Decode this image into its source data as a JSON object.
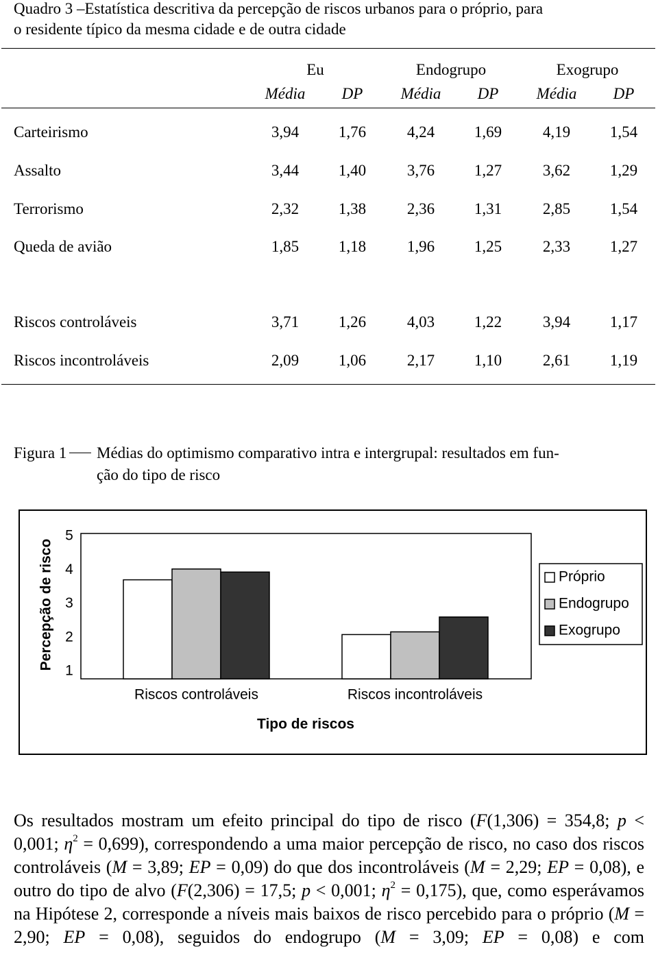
{
  "header": {
    "title": [
      "Quadro 3 –Estatística descritiva da percepção de riscos urbanos para o próprio, para",
      "o residente típico da mesma cidade e de outra cidade"
    ]
  },
  "table": {
    "groups": [
      "Eu",
      "Endogrupo",
      "Exogrupo"
    ],
    "subheaders": [
      "Média",
      "DP",
      "Média",
      "DP",
      "Média",
      "DP"
    ],
    "rows": [
      [
        "Carteirismo",
        "3,94",
        "1,76",
        "4,24",
        "1,69",
        "4,19",
        "1,54"
      ],
      [
        "Assalto",
        "3,44",
        "1,40",
        "3,76",
        "1,27",
        "3,62",
        "1,29"
      ],
      [
        "Terrorismo",
        "2,32",
        "1,38",
        "2,36",
        "1,31",
        "2,85",
        "1,54"
      ],
      [
        "Queda de avião",
        "1,85",
        "1,18",
        "1,96",
        "1,25",
        "2,33",
        "1,27"
      ],
      [
        "Riscos controláveis",
        "3,71",
        "1,26",
        "4,03",
        "1,22",
        "3,94",
        "1,17"
      ],
      [
        "Riscos incontroláveis",
        "2,09",
        "1,06",
        "2,17",
        "1,10",
        "2,61",
        "1,19"
      ]
    ]
  },
  "figure": {
    "label": "Figura 1",
    "caption": [
      "Médias do optimismo comparativo intra e intergrupal: resultados em fun-",
      "ção do tipo de risco"
    ]
  },
  "chart_data": {
    "type": "bar",
    "y_label": "Percepção de risco",
    "x_label": "Tipo de riscos",
    "categories": [
      "Riscos controláveis",
      "Riscos incontroláveis"
    ],
    "series": [
      {
        "name": "Próprio",
        "color": "#ffffff",
        "values": [
          3.71,
          2.09
        ]
      },
      {
        "name": "Endogrupo",
        "color": "#c0c0c0",
        "values": [
          4.03,
          2.17
        ]
      },
      {
        "name": "Exogrupo",
        "color": "#333333",
        "values": [
          3.94,
          2.61
        ]
      }
    ],
    "ylim": [
      0.78,
      5
    ],
    "yticks": [
      1,
      2,
      3,
      4,
      5
    ],
    "grid": false,
    "legend": "right"
  },
  "paragraph": [
    {
      "text": "Os resultados mostram um efeito principal do tipo de risco ("
    },
    {
      "text": "F",
      "style": "italic"
    },
    {
      "text": "(1,306) = 354,8; "
    },
    {
      "text": "p",
      "style": "italic"
    },
    {
      "text": " < 0,001; "
    },
    {
      "text": "η",
      "style": "italic"
    },
    {
      "text": "2",
      "style": "sup"
    },
    {
      "text": " = 0,699), correspondendo a uma maior percepção de risco, no caso dos riscos controláveis ("
    },
    {
      "text": "M",
      "style": "italic"
    },
    {
      "text": " = 3,89; "
    },
    {
      "text": "EP",
      "style": "italic"
    },
    {
      "text": " = 0,09) do que dos incontroláveis ("
    },
    {
      "text": "M",
      "style": "italic"
    },
    {
      "text": " = 2,29; "
    },
    {
      "text": "EP",
      "style": "italic"
    },
    {
      "text": " = 0,08), e outro do tipo de alvo ("
    },
    {
      "text": "F",
      "style": "italic"
    },
    {
      "text": "(2,306) = 17,5; "
    },
    {
      "text": "p",
      "style": "italic"
    },
    {
      "text": " < 0,001; "
    },
    {
      "text": "η",
      "style": "italic"
    },
    {
      "text": "2",
      "style": "sup"
    },
    {
      "text": " = 0,175), que, como esperávamos na Hipó­tese 2, corresponde a níveis mais baixos de risco percebido para o próprio ("
    },
    {
      "text": "M",
      "style": "italic"
    },
    {
      "text": " = 2,90; "
    },
    {
      "text": "EP",
      "style": "italic"
    },
    {
      "text": " = 0,08), seguidos do endogrupo ("
    },
    {
      "text": "M",
      "style": "italic"
    },
    {
      "text": " = 3,09; "
    },
    {
      "text": "EP",
      "style": "italic"
    },
    {
      "text": " = 0,08) e com"
    }
  ]
}
